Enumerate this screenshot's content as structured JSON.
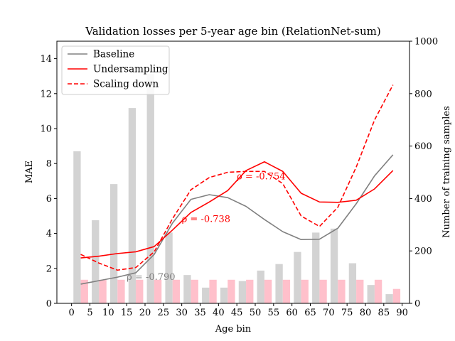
{
  "chart_data": {
    "type": "bar+line",
    "title": "Validation losses per 5-year age bin (RelationNet-sum)",
    "xlabel": "Age bin",
    "ylabel_left": "MAE",
    "ylabel_right": "Number of training samples",
    "xlim": [
      -4,
      92
    ],
    "ylim_left": [
      0,
      15
    ],
    "ylim_right": [
      0,
      1000
    ],
    "xticks": [
      0,
      5,
      10,
      15,
      20,
      25,
      30,
      35,
      40,
      45,
      50,
      55,
      60,
      65,
      70,
      75,
      80,
      85,
      90
    ],
    "yticks_left": [
      0,
      2,
      4,
      6,
      8,
      10,
      12,
      14
    ],
    "yticks_right": [
      0,
      200,
      400,
      600,
      800,
      1000
    ],
    "grid": false,
    "legend_placement": "top-left",
    "bars": {
      "axis": "right",
      "grey_x": [
        1.5,
        6.5,
        11.5,
        16.5,
        21.5,
        26.5,
        31.5,
        36.5,
        41.5,
        46.5,
        51.5,
        56.5,
        61.5,
        66.5,
        71.5,
        76.5,
        81.5,
        86.5
      ],
      "grey_values": [
        580,
        317,
        455,
        745,
        875,
        270,
        108,
        60,
        60,
        85,
        125,
        150,
        196,
        270,
        285,
        153,
        70,
        35
      ],
      "pink_x": [
        3.5,
        8.5,
        13.5,
        18.5,
        23.5,
        28.5,
        33.5,
        38.5,
        43.5,
        48.5,
        53.5,
        58.5,
        63.5,
        68.5,
        73.5,
        78.5,
        83.5,
        88.5
      ],
      "pink_values": [
        90,
        90,
        90,
        90,
        90,
        90,
        90,
        90,
        90,
        90,
        90,
        90,
        90,
        90,
        90,
        90,
        90,
        55
      ],
      "grey_color": "#d3d3d3",
      "pink_color": "#ffc0cb"
    },
    "series": [
      {
        "name": "Baseline",
        "color": "#808080",
        "dash": "solid",
        "x": [
          2.5,
          7.5,
          12.5,
          17.5,
          22.5,
          27.5,
          32.5,
          37.5,
          42.5,
          47.5,
          52.5,
          57.5,
          62.5,
          67.5,
          72.5,
          77.5,
          82.5,
          87.5
        ],
        "values": [
          1.1,
          1.3,
          1.5,
          1.75,
          2.8,
          4.6,
          5.95,
          6.22,
          6.05,
          5.55,
          4.8,
          4.1,
          3.65,
          3.67,
          4.3,
          5.7,
          7.3,
          8.5
        ]
      },
      {
        "name": "Undersampling",
        "color": "#ff0000",
        "dash": "solid",
        "x": [
          2.5,
          7.5,
          12.5,
          17.5,
          22.5,
          27.5,
          32.5,
          37.5,
          42.5,
          47.5,
          52.5,
          57.5,
          62.5,
          67.5,
          72.5,
          77.5,
          82.5,
          87.5
        ],
        "values": [
          2.6,
          2.7,
          2.85,
          2.95,
          3.25,
          4.2,
          5.2,
          5.8,
          6.45,
          7.6,
          8.1,
          7.55,
          6.3,
          5.8,
          5.78,
          5.9,
          6.55,
          7.6
        ]
      },
      {
        "name": "Scaling down",
        "color": "#ff0000",
        "dash": "dashed",
        "x": [
          2.5,
          7.5,
          12.5,
          17.5,
          22.5,
          27.5,
          32.5,
          37.5,
          42.5,
          47.5,
          52.5,
          57.5,
          62.5,
          67.5,
          72.5,
          77.5,
          82.5,
          87.5
        ],
        "values": [
          2.8,
          2.3,
          1.9,
          2.05,
          2.95,
          4.85,
          6.5,
          7.2,
          7.5,
          7.55,
          7.55,
          6.85,
          5.0,
          4.4,
          5.5,
          7.8,
          10.5,
          12.5
        ]
      }
    ],
    "annotations": [
      {
        "text": "ρ = -0.790",
        "x": 15,
        "y": 1.35,
        "color": "#808080"
      },
      {
        "text": "ρ = -0.738",
        "x": 30,
        "y": 4.65,
        "color": "#ff0000"
      },
      {
        "text": "ρ = -0.754",
        "x": 45,
        "y": 7.1,
        "color": "#ff0000"
      }
    ]
  }
}
